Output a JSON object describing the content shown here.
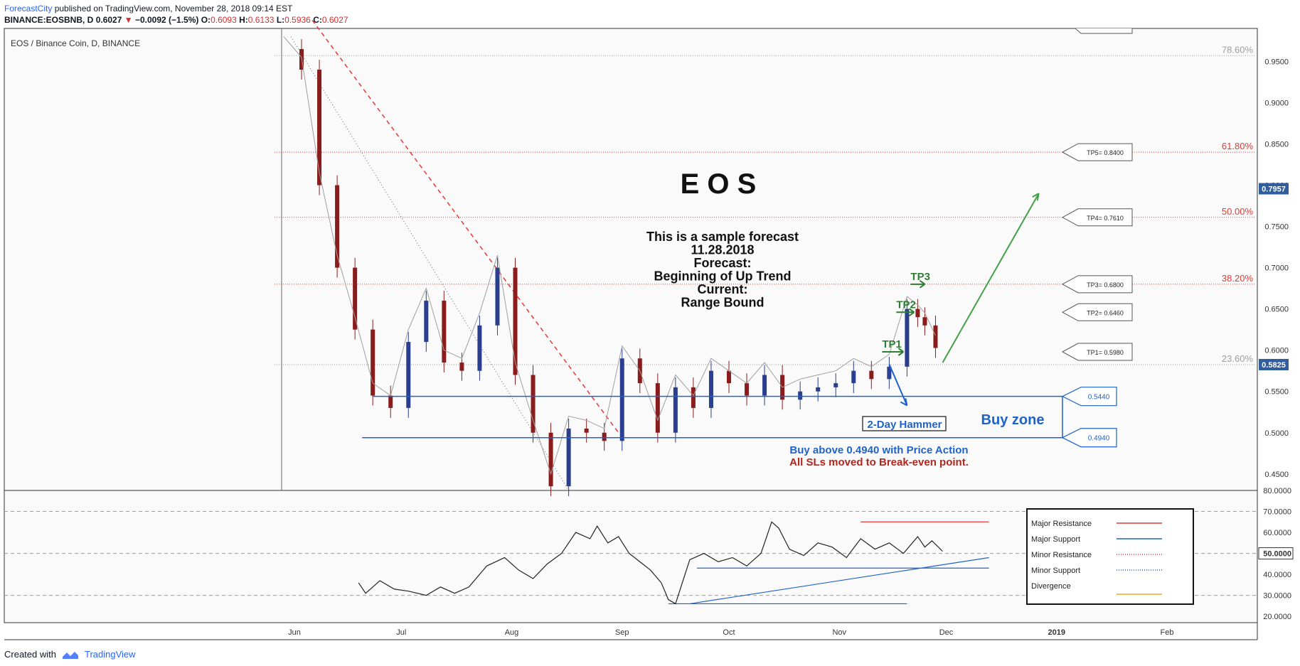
{
  "header": {
    "publisher": "ForecastCity",
    "published_text": " published on TradingView.com, November 28, 2018 09:14 EST",
    "symbol": "BINANCE:EOSBNB, D",
    "price": "0.6027",
    "change": "−0.0092 (−1.5%)",
    "o_label": "O:",
    "o_value": "0.6093",
    "h_label": "H:",
    "h_value": "0.6133",
    "l_label": "L:",
    "l_value": "0.5936",
    "c_label": "C:",
    "c_value": "0.6027"
  },
  "footer": {
    "created_with": "Created with",
    "brand": "TradingView"
  },
  "colors": {
    "up": "#2a3f8f",
    "down": "#8b1c1c",
    "fib": "#e53935",
    "support": "#1e63c8",
    "target_arrow": "#2e7d32",
    "trend_arrow": "#43a047",
    "rsi_line": "#222222",
    "price_tag_bg": "#2f5d9e"
  },
  "chart_data": [
    {
      "type": "candlestick",
      "title": "EOS / Binance Coin, D, BINANCE",
      "x_tick_labels": [
        "Jun",
        "Jul",
        "Aug",
        "Sep",
        "Oct",
        "Nov",
        "Dec",
        "2019",
        "Feb"
      ],
      "x_tick_dates": [
        "2018-06-01",
        "2018-07-01",
        "2018-08-01",
        "2018-09-01",
        "2018-10-01",
        "2018-11-01",
        "2018-12-01",
        "2019-01-01",
        "2019-02-01"
      ],
      "y_ticks": [
        "0.9500",
        "0.9000",
        "0.8500",
        "0.8000",
        "0.7500",
        "0.7000",
        "0.6500",
        "0.6000",
        "0.5500",
        "0.5000",
        "0.4500"
      ],
      "ylim": [
        0.43,
        0.99
      ],
      "closes": [
        {
          "date": "2018-05-29",
          "close": 0.965
        },
        {
          "date": "2018-06-03",
          "close": 0.94
        },
        {
          "date": "2018-06-08",
          "close": 0.8
        },
        {
          "date": "2018-06-13",
          "close": 0.7
        },
        {
          "date": "2018-06-18",
          "close": 0.625
        },
        {
          "date": "2018-06-23",
          "close": 0.545
        },
        {
          "date": "2018-06-28",
          "close": 0.53
        },
        {
          "date": "2018-07-03",
          "close": 0.61
        },
        {
          "date": "2018-07-08",
          "close": 0.66
        },
        {
          "date": "2018-07-13",
          "close": 0.585
        },
        {
          "date": "2018-07-18",
          "close": 0.575
        },
        {
          "date": "2018-07-23",
          "close": 0.63
        },
        {
          "date": "2018-07-28",
          "close": 0.7
        },
        {
          "date": "2018-08-02",
          "close": 0.57
        },
        {
          "date": "2018-08-07",
          "close": 0.5
        },
        {
          "date": "2018-08-12",
          "close": 0.435
        },
        {
          "date": "2018-08-17",
          "close": 0.505
        },
        {
          "date": "2018-08-22",
          "close": 0.5
        },
        {
          "date": "2018-08-27",
          "close": 0.49
        },
        {
          "date": "2018-09-01",
          "close": 0.59
        },
        {
          "date": "2018-09-06",
          "close": 0.56
        },
        {
          "date": "2018-09-11",
          "close": 0.5
        },
        {
          "date": "2018-09-16",
          "close": 0.555
        },
        {
          "date": "2018-09-21",
          "close": 0.53
        },
        {
          "date": "2018-09-26",
          "close": 0.575
        },
        {
          "date": "2018-10-01",
          "close": 0.56
        },
        {
          "date": "2018-10-06",
          "close": 0.545
        },
        {
          "date": "2018-10-11",
          "close": 0.57
        },
        {
          "date": "2018-10-16",
          "close": 0.54
        },
        {
          "date": "2018-10-21",
          "close": 0.55
        },
        {
          "date": "2018-10-26",
          "close": 0.555
        },
        {
          "date": "2018-10-31",
          "close": 0.56
        },
        {
          "date": "2018-11-05",
          "close": 0.575
        },
        {
          "date": "2018-11-10",
          "close": 0.565
        },
        {
          "date": "2018-11-15",
          "close": 0.58
        },
        {
          "date": "2018-11-20",
          "close": 0.65
        },
        {
          "date": "2018-11-23",
          "close": 0.64
        },
        {
          "date": "2018-11-25",
          "close": 0.63
        },
        {
          "date": "2018-11-28",
          "close": 0.6027
        }
      ],
      "fib_levels": [
        {
          "label": "78.60%",
          "value": 0.957,
          "dotted_gray": true
        },
        {
          "label": "61.80%",
          "value": 0.84
        },
        {
          "label": "50.00%",
          "value": 0.761
        },
        {
          "label": "38.20%",
          "value": 0.68
        },
        {
          "label": "23.60%",
          "value": 0.5825,
          "dotted_gray": true
        }
      ],
      "support_levels": [
        {
          "label": "0.5440",
          "value": 0.544
        },
        {
          "label": "0.4940",
          "value": 0.494
        }
      ],
      "targets": [
        {
          "label": "TP5= 0.8400",
          "value": 0.84
        },
        {
          "label": "TP4= 0.7610",
          "value": 0.761
        },
        {
          "label": "TP3= 0.6800",
          "value": 0.68
        },
        {
          "label": "TP2= 0.6460",
          "value": 0.646
        },
        {
          "label": "TP1= 0.5980",
          "value": 0.598
        }
      ],
      "target_arrows": [
        "TP3",
        "TP2",
        "TP1"
      ],
      "price_tags": [
        "0.7957",
        "0.5825"
      ],
      "annotations": {
        "big_title": "E O S",
        "forecast_lines": [
          "This is a sample forecast",
          "11.28.2018",
          "Forecast:",
          "Beginning of Up Trend",
          "Current:",
          "Range Bound"
        ],
        "buy_zone": "Buy zone",
        "hammer": "2-Day Hammer",
        "buy_line": "Buy above 0.4940 with Price Action",
        "sl_line": "All SLs moved to Break-even point."
      }
    },
    {
      "type": "line",
      "y_ticks": [
        "80.0000",
        "70.0000",
        "60.0000",
        "50.0000",
        "40.0000",
        "30.0000",
        "20.0000"
      ],
      "y_highlight": "50.0000",
      "ylim": [
        17,
        80
      ],
      "series": [
        {
          "points": [
            {
              "date": "2018-06-19",
              "value": 36
            },
            {
              "date": "2018-06-21",
              "value": 31
            },
            {
              "date": "2018-06-25",
              "value": 37
            },
            {
              "date": "2018-06-29",
              "value": 33
            },
            {
              "date": "2018-07-03",
              "value": 32
            },
            {
              "date": "2018-07-08",
              "value": 30
            },
            {
              "date": "2018-07-12",
              "value": 34
            },
            {
              "date": "2018-07-16",
              "value": 31
            },
            {
              "date": "2018-07-20",
              "value": 34
            },
            {
              "date": "2018-07-25",
              "value": 44
            },
            {
              "date": "2018-07-30",
              "value": 48
            },
            {
              "date": "2018-08-03",
              "value": 42
            },
            {
              "date": "2018-08-07",
              "value": 38
            },
            {
              "date": "2018-08-11",
              "value": 45
            },
            {
              "date": "2018-08-15",
              "value": 50
            },
            {
              "date": "2018-08-19",
              "value": 60
            },
            {
              "date": "2018-08-23",
              "value": 57
            },
            {
              "date": "2018-08-25",
              "value": 63
            },
            {
              "date": "2018-08-28",
              "value": 55
            },
            {
              "date": "2018-08-31",
              "value": 58
            },
            {
              "date": "2018-09-03",
              "value": 50
            },
            {
              "date": "2018-09-06",
              "value": 46
            },
            {
              "date": "2018-09-09",
              "value": 42
            },
            {
              "date": "2018-09-12",
              "value": 36
            },
            {
              "date": "2018-09-14",
              "value": 28
            },
            {
              "date": "2018-09-16",
              "value": 26
            },
            {
              "date": "2018-09-20",
              "value": 47
            },
            {
              "date": "2018-09-24",
              "value": 50
            },
            {
              "date": "2018-09-28",
              "value": 46
            },
            {
              "date": "2018-10-02",
              "value": 48
            },
            {
              "date": "2018-10-06",
              "value": 44
            },
            {
              "date": "2018-10-10",
              "value": 50
            },
            {
              "date": "2018-10-13",
              "value": 65
            },
            {
              "date": "2018-10-15",
              "value": 62
            },
            {
              "date": "2018-10-18",
              "value": 52
            },
            {
              "date": "2018-10-22",
              "value": 49
            },
            {
              "date": "2018-10-26",
              "value": 55
            },
            {
              "date": "2018-10-30",
              "value": 53
            },
            {
              "date": "2018-11-03",
              "value": 48
            },
            {
              "date": "2018-11-07",
              "value": 57
            },
            {
              "date": "2018-11-11",
              "value": 52
            },
            {
              "date": "2018-11-15",
              "value": 55
            },
            {
              "date": "2018-11-19",
              "value": 50
            },
            {
              "date": "2018-11-23",
              "value": 58
            },
            {
              "date": "2018-11-25",
              "value": 53
            },
            {
              "date": "2018-11-27",
              "value": 56
            },
            {
              "date": "2018-11-30",
              "value": 51
            }
          ]
        }
      ],
      "lines": [
        {
          "style": "red",
          "from": {
            "date": "2018-11-07",
            "value": 65
          },
          "to": {
            "date": "2018-12-13",
            "value": 65
          }
        },
        {
          "style": "blue",
          "from": {
            "date": "2018-09-20",
            "value": 26
          },
          "to": {
            "date": "2018-12-13",
            "value": 48
          }
        },
        {
          "style": "blue",
          "from": {
            "date": "2018-09-22",
            "value": 43
          },
          "to": {
            "date": "2018-12-13",
            "value": 43
          }
        },
        {
          "style": "blue",
          "from": {
            "date": "2018-09-14",
            "value": 26
          },
          "to": {
            "date": "2018-11-20",
            "value": 26
          }
        }
      ],
      "legend": [
        {
          "label": "Major Resistance",
          "style": "red-solid"
        },
        {
          "label": "Major Support",
          "style": "blue-solid"
        },
        {
          "label": "Minor Resistance",
          "style": "red-dotted"
        },
        {
          "label": "Minor Support",
          "style": "blue-dotted"
        },
        {
          "label": "Divergence",
          "style": "orange-solid"
        }
      ]
    }
  ]
}
